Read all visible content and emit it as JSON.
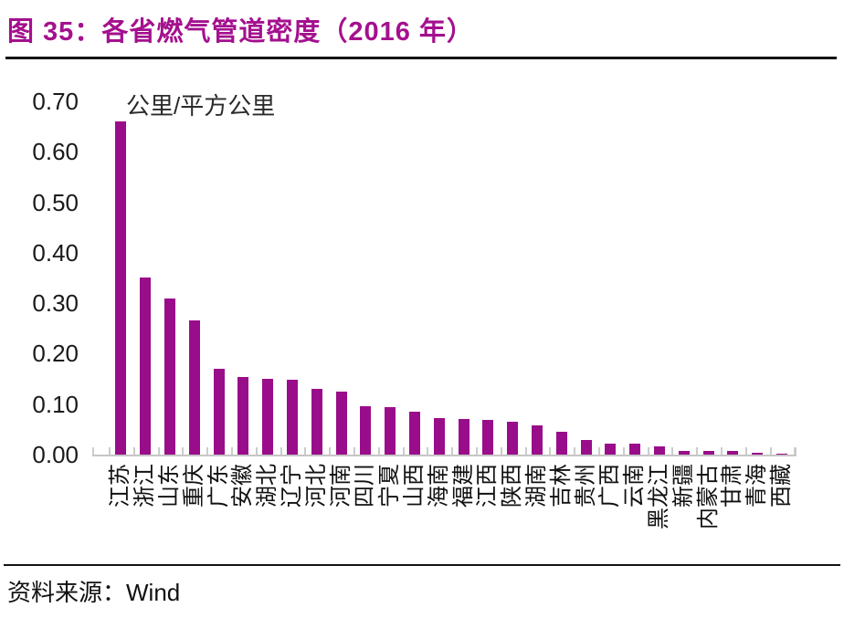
{
  "title": "图 35：各省燃气管道密度（2016 年）",
  "source": {
    "label": "资料来源：",
    "value": "Wind"
  },
  "colors": {
    "bar": "#9a0d8a",
    "title": "#a4108e",
    "axis": "#c6c6c6",
    "text": "#111111"
  },
  "chart_data": {
    "type": "bar",
    "title": "各省燃气管道密度（2016 年）",
    "unit_label": "公里/平方公里",
    "xlabel": "",
    "ylabel": "公里/平方公里",
    "ylim": [
      0,
      0.7
    ],
    "yticks": [
      "0.70",
      "0.60",
      "0.50",
      "0.40",
      "0.30",
      "0.20",
      "0.10",
      "0.00"
    ],
    "grid": false,
    "legend": false,
    "categories": [
      "江苏",
      "浙江",
      "山东",
      "重庆",
      "广东",
      "安徽",
      "湖北",
      "辽宁",
      "河北",
      "河南",
      "四川",
      "宁夏",
      "山西",
      "海南",
      "福建",
      "江西",
      "陕西",
      "湖南",
      "吉林",
      "贵州",
      "广西",
      "云南",
      "黑龙江",
      "新疆",
      "内蒙古",
      "甘肃",
      "青海",
      "西藏"
    ],
    "values": [
      0.66,
      0.35,
      0.31,
      0.265,
      0.17,
      0.153,
      0.151,
      0.149,
      0.13,
      0.125,
      0.095,
      0.094,
      0.085,
      0.073,
      0.07,
      0.068,
      0.066,
      0.058,
      0.046,
      0.029,
      0.021,
      0.021,
      0.017,
      0.008,
      0.007,
      0.007,
      0.003,
      0.001
    ]
  }
}
